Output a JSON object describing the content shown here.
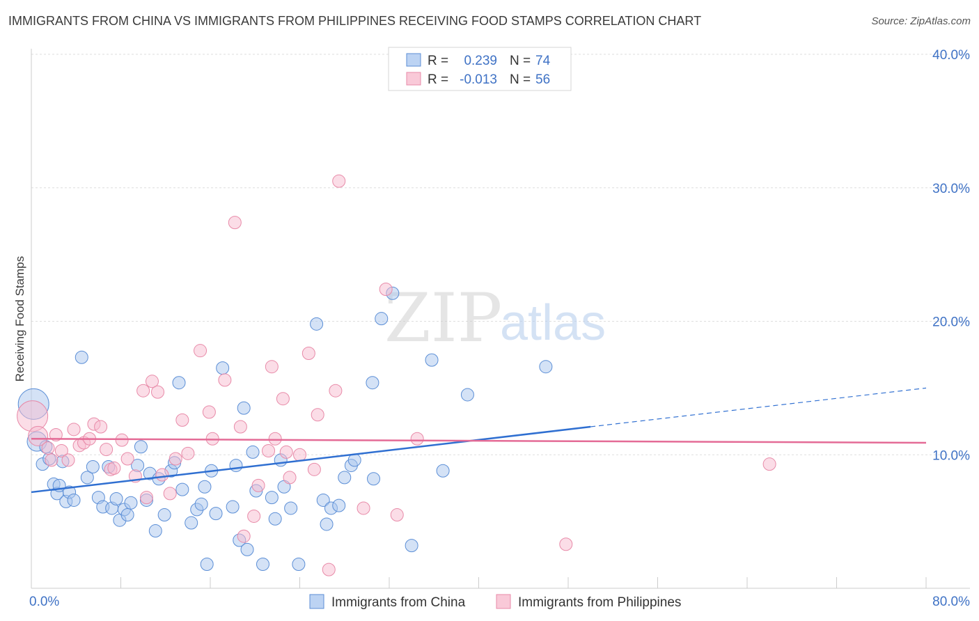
{
  "title": "IMMIGRANTS FROM CHINA VS IMMIGRANTS FROM PHILIPPINES RECEIVING FOOD STAMPS CORRELATION CHART",
  "source": "Source: ZipAtlas.com",
  "watermark": {
    "zip": "ZIP",
    "atlas": "atlas"
  },
  "legend": {
    "r_label": "R =",
    "n_label": "N =",
    "china": {
      "r": "0.239",
      "n": "74"
    },
    "philippines": {
      "r": "-0.013",
      "n": "56"
    }
  },
  "colors": {
    "china_fill": "#a9c6ee",
    "china_stroke": "#5b8ed6",
    "china_line": "#2f6fd1",
    "philippines_fill": "#f7bccf",
    "philippines_stroke": "#e88aa8",
    "philippines_line": "#e46b96",
    "tick_text": "#3f72c5",
    "grid": "#dddddd"
  },
  "chart_data": {
    "type": "scatter",
    "title": "IMMIGRANTS FROM CHINA VS IMMIGRANTS FROM PHILIPPINES RECEIVING FOOD STAMPS CORRELATION CHART",
    "xlabel": "",
    "ylabel": "Receiving Food Stamps",
    "xlim": [
      0,
      80
    ],
    "ylim": [
      0,
      40
    ],
    "x_tick_labels": [
      "0.0%",
      "80.0%"
    ],
    "y_ticks": [
      10,
      20,
      30,
      40
    ],
    "y_tick_labels": [
      "10.0%",
      "20.0%",
      "30.0%",
      "40.0%"
    ],
    "series": [
      {
        "name": "Immigrants from China",
        "r": 0.239,
        "n": 74,
        "trend": {
          "x0": 0,
          "y0": 7.2,
          "x1": 50,
          "y1": 12.1,
          "dashed_to_x": 80,
          "dashed_to_y": 15.0
        },
        "points": [
          [
            0.2,
            13.8,
            "L"
          ],
          [
            0.5,
            11.0,
            "M"
          ],
          [
            1.0,
            9.3
          ],
          [
            1.3,
            10.6
          ],
          [
            1.6,
            9.7
          ],
          [
            2.0,
            7.8
          ],
          [
            2.3,
            7.1
          ],
          [
            2.5,
            7.7
          ],
          [
            2.8,
            9.5
          ],
          [
            3.1,
            6.5
          ],
          [
            3.4,
            7.2
          ],
          [
            3.8,
            6.6
          ],
          [
            4.5,
            17.3
          ],
          [
            5.0,
            8.3
          ],
          [
            5.5,
            9.1
          ],
          [
            6.0,
            6.8
          ],
          [
            6.4,
            6.1
          ],
          [
            6.9,
            9.1
          ],
          [
            7.2,
            6.0
          ],
          [
            7.6,
            6.7
          ],
          [
            7.9,
            5.1
          ],
          [
            8.3,
            5.9
          ],
          [
            8.6,
            5.5
          ],
          [
            8.9,
            6.4
          ],
          [
            9.5,
            9.2
          ],
          [
            9.8,
            10.6
          ],
          [
            10.3,
            6.6
          ],
          [
            10.6,
            8.6
          ],
          [
            11.1,
            4.3
          ],
          [
            11.4,
            8.2
          ],
          [
            11.9,
            5.5
          ],
          [
            12.5,
            8.8
          ],
          [
            12.8,
            9.4
          ],
          [
            13.2,
            15.4
          ],
          [
            13.5,
            7.4
          ],
          [
            14.3,
            4.9
          ],
          [
            14.8,
            5.9
          ],
          [
            15.2,
            6.3
          ],
          [
            15.5,
            7.6
          ],
          [
            15.7,
            1.8
          ],
          [
            16.1,
            8.8
          ],
          [
            16.5,
            5.6
          ],
          [
            17.1,
            16.5
          ],
          [
            18.0,
            6.1
          ],
          [
            18.3,
            9.2
          ],
          [
            18.6,
            3.6
          ],
          [
            19.0,
            13.5
          ],
          [
            19.3,
            2.9
          ],
          [
            19.8,
            10.2
          ],
          [
            20.1,
            7.3
          ],
          [
            20.7,
            1.8
          ],
          [
            21.5,
            6.8
          ],
          [
            21.8,
            5.2
          ],
          [
            22.3,
            9.6
          ],
          [
            22.6,
            7.6
          ],
          [
            23.2,
            6.0
          ],
          [
            23.9,
            1.8
          ],
          [
            25.5,
            19.8
          ],
          [
            26.1,
            6.6
          ],
          [
            26.4,
            4.8
          ],
          [
            26.8,
            6.0
          ],
          [
            27.5,
            6.2
          ],
          [
            28.0,
            8.3
          ],
          [
            28.6,
            9.2
          ],
          [
            28.9,
            9.6
          ],
          [
            30.5,
            15.4
          ],
          [
            30.6,
            8.2
          ],
          [
            31.3,
            20.2
          ],
          [
            32.3,
            22.1
          ],
          [
            34.0,
            3.2
          ],
          [
            35.8,
            17.1
          ],
          [
            36.8,
            8.8
          ],
          [
            39.0,
            14.5
          ],
          [
            46.0,
            16.6
          ]
        ]
      },
      {
        "name": "Immigrants from Philippines",
        "r": -0.013,
        "n": 56,
        "trend": {
          "x0": 0,
          "y0": 11.2,
          "x1": 80,
          "y1": 10.9
        },
        "points": [
          [
            0.1,
            12.9,
            "L"
          ],
          [
            0.6,
            11.4,
            "M"
          ],
          [
            1.5,
            10.5
          ],
          [
            1.8,
            9.6
          ],
          [
            2.2,
            11.5
          ],
          [
            2.7,
            10.3
          ],
          [
            3.3,
            9.6
          ],
          [
            3.8,
            11.9
          ],
          [
            4.3,
            10.7
          ],
          [
            4.7,
            10.9
          ],
          [
            5.2,
            11.2
          ],
          [
            5.6,
            12.3
          ],
          [
            6.2,
            12.1
          ],
          [
            6.7,
            10.4
          ],
          [
            7.1,
            8.9
          ],
          [
            7.4,
            9.0
          ],
          [
            8.1,
            11.1
          ],
          [
            8.6,
            9.7
          ],
          [
            9.3,
            8.4
          ],
          [
            10.0,
            14.8
          ],
          [
            10.3,
            6.8
          ],
          [
            10.8,
            15.5
          ],
          [
            11.3,
            14.7
          ],
          [
            11.7,
            8.5
          ],
          [
            12.4,
            7.1
          ],
          [
            12.9,
            9.7
          ],
          [
            13.5,
            12.6
          ],
          [
            14.0,
            10.1
          ],
          [
            15.1,
            17.8
          ],
          [
            15.9,
            13.2
          ],
          [
            16.2,
            11.2
          ],
          [
            17.3,
            15.6
          ],
          [
            18.2,
            27.4
          ],
          [
            18.7,
            12.1
          ],
          [
            19.0,
            3.9
          ],
          [
            19.9,
            5.4
          ],
          [
            20.3,
            7.7
          ],
          [
            21.2,
            10.3
          ],
          [
            21.5,
            16.6
          ],
          [
            21.8,
            11.2
          ],
          [
            22.5,
            14.2
          ],
          [
            22.8,
            10.2
          ],
          [
            23.1,
            8.3
          ],
          [
            24.0,
            10.0
          ],
          [
            24.8,
            17.6
          ],
          [
            25.3,
            8.9
          ],
          [
            25.6,
            13.0
          ],
          [
            26.6,
            1.4
          ],
          [
            27.2,
            14.8
          ],
          [
            27.5,
            30.5
          ],
          [
            29.7,
            6.0
          ],
          [
            31.7,
            22.4
          ],
          [
            32.7,
            5.5
          ],
          [
            34.5,
            11.2
          ],
          [
            47.8,
            3.3
          ],
          [
            66.0,
            9.3
          ]
        ]
      }
    ]
  },
  "bottom_legend": {
    "china_label": "Immigrants from China",
    "philippines_label": "Immigrants from Philippines"
  }
}
